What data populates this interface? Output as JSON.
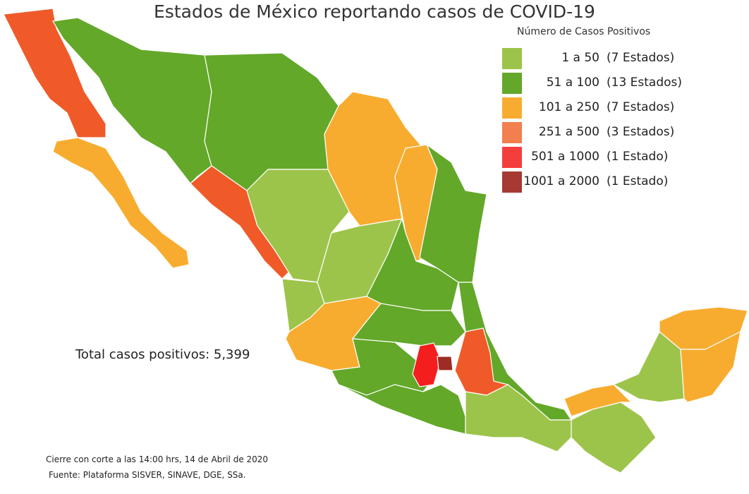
{
  "title": "Estados de México reportando casos de COVID-19",
  "legend": {
    "title": "Número de Casos Positivos",
    "items": [
      {
        "range": "1 a 50",
        "count": "(7 Estados)"
      },
      {
        "range": "51 a 100",
        "count": "(13 Estados)"
      },
      {
        "range": "101 a 250",
        "count": "(7 Estados)"
      },
      {
        "range": "251 a 500",
        "count": "(3 Estados)"
      },
      {
        "range": "501 a 1000",
        "count": "(1 Estado)"
      },
      {
        "range": "1001 a 2000",
        "count": "(1 Estado)"
      }
    ]
  },
  "total": "Total casos positivos: 5,399",
  "footer": {
    "cutoff": "Cierre con corte a las 14:00 hrs, 14 de Abril de 2020",
    "source": "Fuente: Plataforma SISVER, SINAVE, DGE, SSa."
  }
}
